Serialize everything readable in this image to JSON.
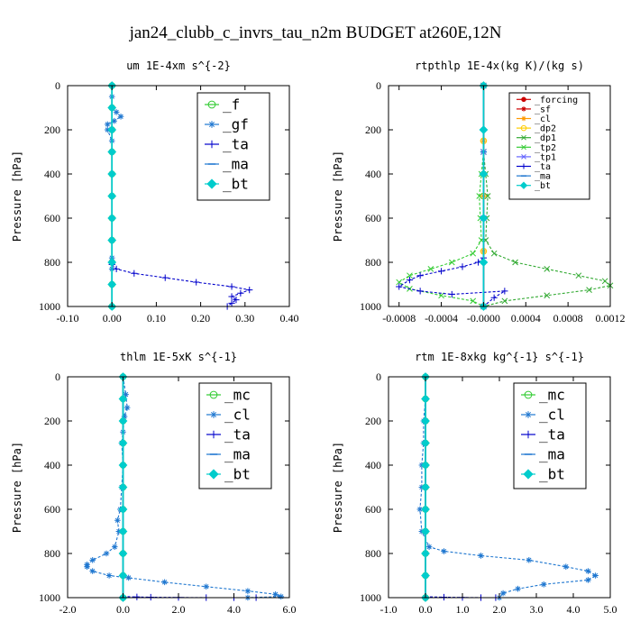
{
  "figure": {
    "title": "jan24_clubb_c_invrs_tau_n2m  BUDGET at260E,12N"
  },
  "chart_data": [
    {
      "type": "line",
      "title": "um  1E-4xm s^{-2}",
      "ylabel": "Pressure [hPa]",
      "xlim": [
        -0.1,
        0.4
      ],
      "ylim": [
        1000,
        0
      ],
      "xticks": [
        -0.1,
        0.0,
        0.1,
        0.2,
        0.3,
        0.4
      ],
      "xtick_labels": [
        "-0.10",
        "0.00",
        "0.10",
        "0.20",
        "0.30",
        "0.40"
      ],
      "yticks": [
        0,
        200,
        400,
        600,
        800,
        1000
      ],
      "ytick_labels": [
        "0",
        "200",
        "400",
        "600",
        "800",
        "1000"
      ],
      "legend_position": "top-right",
      "series": [
        {
          "name": "_f",
          "color": "#33cc33",
          "marker": "circle",
          "x": [
            0.0,
            0.0,
            0.0,
            0.0,
            0.0,
            0.0,
            0.0,
            0.0,
            0.0,
            0.0,
            0.0
          ],
          "y": [
            0,
            100,
            200,
            300,
            400,
            500,
            600,
            700,
            800,
            900,
            1000
          ]
        },
        {
          "name": "_gf",
          "color": "#1f77d0",
          "marker": "star",
          "x": [
            0.0,
            0.0,
            0.0,
            0.01,
            0.02,
            0.005,
            -0.01,
            -0.01,
            0.0,
            0.0,
            0.0,
            0.0,
            0.0,
            0.0,
            0.0,
            0.0,
            0.0
          ],
          "y": [
            0,
            50,
            100,
            120,
            140,
            160,
            175,
            200,
            250,
            300,
            400,
            500,
            600,
            700,
            780,
            800,
            830
          ]
        },
        {
          "name": "_ta",
          "color": "#0000cc",
          "marker": "plus",
          "x": [
            0.0,
            0.01,
            0.05,
            0.12,
            0.19,
            0.27,
            0.31,
            0.29,
            0.27,
            0.28,
            0.27,
            0.26
          ],
          "y": [
            810,
            830,
            850,
            870,
            890,
            910,
            925,
            940,
            955,
            970,
            985,
            1000
          ]
        },
        {
          "name": "_ma",
          "color": "#1f77d0",
          "marker": "dash",
          "x": [
            0.0,
            0.0,
            0.0,
            0.0,
            0.0,
            0.0
          ],
          "y": [
            0,
            200,
            400,
            600,
            800,
            1000
          ]
        },
        {
          "name": "_bt",
          "color": "#00cccc",
          "marker": "diamond",
          "x": [
            0.0,
            0.0,
            0.0,
            0.0,
            0.0,
            0.0,
            0.0,
            0.0,
            0.0,
            0.0,
            0.0
          ],
          "y": [
            0,
            100,
            200,
            300,
            400,
            500,
            600,
            700,
            800,
            900,
            1000
          ]
        }
      ]
    },
    {
      "type": "line",
      "title": "rtpthlp  1E-4x(kg K)/(kg s)",
      "ylabel": "Pressure [hPa]",
      "xlim": [
        -0.0009,
        0.0012
      ],
      "ylim": [
        1000,
        0
      ],
      "xticks": [
        -0.0008,
        -0.0004,
        0.0,
        0.0004,
        0.0008,
        0.0012
      ],
      "xtick_labels": [
        "-0.0008",
        "-0.0004",
        "-0.0000",
        "0.0004",
        "0.0008",
        "0.0012"
      ],
      "yticks": [
        0,
        200,
        400,
        600,
        800,
        1000
      ],
      "ytick_labels": [
        "0",
        "200",
        "400",
        "600",
        "800",
        "1000"
      ],
      "legend_position": "top-right",
      "series": [
        {
          "name": "_forcing",
          "color": "#cc0000",
          "marker": "dot",
          "x": [
            0.0,
            0.0,
            0.0,
            0.0,
            0.0,
            0.0
          ],
          "y": [
            0,
            200,
            400,
            600,
            800,
            1000
          ]
        },
        {
          "name": "_sf",
          "color": "#cc0000",
          "marker": "star",
          "x": [
            0.0,
            0.0,
            0.0,
            0.0,
            0.0,
            0.0
          ],
          "y": [
            0,
            200,
            400,
            600,
            800,
            1000
          ]
        },
        {
          "name": "_cl",
          "color": "#ff9900",
          "marker": "star",
          "x": [
            0.0,
            0.0,
            0.0,
            0.0,
            0.0
          ],
          "y": [
            0,
            250,
            500,
            750,
            1000
          ]
        },
        {
          "name": "_dp2",
          "color": "#ffcc00",
          "marker": "circle",
          "x": [
            0.0,
            0.0,
            0.0,
            0.0,
            0.0
          ],
          "y": [
            0,
            250,
            500,
            750,
            1000
          ]
        },
        {
          "name": "_dp1",
          "color": "#33aa33",
          "marker": "cross",
          "x": [
            0.0,
            0.0,
            2e-05,
            4e-05,
            3e-05,
            2e-05,
            0.0001,
            0.0003,
            0.0006,
            0.0009,
            0.00115,
            0.0012,
            0.001,
            0.0006,
            0.0002,
            0.0
          ],
          "y": [
            0,
            300,
            400,
            500,
            600,
            700,
            760,
            800,
            830,
            860,
            885,
            905,
            925,
            950,
            975,
            1000
          ]
        },
        {
          "name": "_tp2",
          "color": "#33cc33",
          "marker": "cross",
          "x": [
            0.0,
            0.0,
            -2e-05,
            -4e-05,
            -3e-05,
            -2e-05,
            -0.0001,
            -0.0003,
            -0.0005,
            -0.0007,
            -0.0008,
            -0.0007,
            -0.0004,
            -0.0001,
            0.0
          ],
          "y": [
            0,
            300,
            400,
            500,
            600,
            700,
            760,
            800,
            830,
            860,
            890,
            920,
            950,
            975,
            1000
          ]
        },
        {
          "name": "_tp1",
          "color": "#6666ff",
          "marker": "cross",
          "x": [
            0.0,
            0.0,
            0.0,
            0.0
          ],
          "y": [
            0,
            300,
            600,
            1000
          ]
        },
        {
          "name": "_ta",
          "color": "#0000cc",
          "marker": "plus",
          "x": [
            0.0,
            -5e-05,
            -0.0002,
            -0.0004,
            -0.0006,
            -0.0007,
            -0.0008,
            -0.0006,
            -0.0003,
            0.0002,
            0.0001,
            0.0
          ],
          "y": [
            780,
            800,
            820,
            840,
            860,
            880,
            910,
            930,
            945,
            930,
            960,
            1000
          ]
        },
        {
          "name": "_ma",
          "color": "#1f77d0",
          "marker": "dash",
          "x": [
            0.0,
            0.0,
            0.0,
            0.0
          ],
          "y": [
            0,
            300,
            600,
            1000
          ]
        },
        {
          "name": "_bt",
          "color": "#00cccc",
          "marker": "diamond",
          "x": [
            0.0,
            0.0,
            0.0,
            0.0,
            0.0,
            0.0
          ],
          "y": [
            0,
            200,
            400,
            600,
            800,
            1000
          ]
        }
      ]
    },
    {
      "type": "line",
      "title": "thlm  1E-5xK s^{-1}",
      "ylabel": "Pressure [hPa]",
      "xlim": [
        -2.0,
        6.0
      ],
      "ylim": [
        1000,
        0
      ],
      "xticks": [
        -2.0,
        0.0,
        2.0,
        4.0,
        6.0
      ],
      "xtick_labels": [
        "-2.0",
        "0.0",
        "2.0",
        "4.0",
        "6.0"
      ],
      "yticks": [
        0,
        200,
        400,
        600,
        800,
        1000
      ],
      "ytick_labels": [
        "0",
        "200",
        "400",
        "600",
        "800",
        "1000"
      ],
      "legend_position": "top-right",
      "series": [
        {
          "name": "_mc",
          "color": "#33cc33",
          "marker": "circle",
          "x": [
            0.0,
            0.0,
            0.0,
            0.0,
            0.0,
            0.0,
            0.0,
            0.0,
            0.0,
            0.0,
            0.0
          ],
          "y": [
            0,
            100,
            200,
            300,
            400,
            500,
            600,
            700,
            800,
            900,
            1000
          ]
        },
        {
          "name": "_cl",
          "color": "#1f77d0",
          "marker": "star",
          "x": [
            0.0,
            0.1,
            0.15,
            0.05,
            0.0,
            -0.05,
            0.0,
            -0.05,
            -0.1,
            -0.2,
            -0.15,
            -0.3,
            -0.6,
            -1.1,
            -1.3,
            -1.3,
            -1.1,
            -0.5,
            0.2,
            1.5,
            3.0,
            4.5,
            5.5,
            5.7,
            4.5
          ],
          "y": [
            0,
            80,
            140,
            180,
            250,
            300,
            400,
            500,
            600,
            650,
            700,
            770,
            800,
            830,
            850,
            860,
            880,
            900,
            910,
            930,
            950,
            970,
            985,
            995,
            1000
          ]
        },
        {
          "name": "_ta",
          "color": "#0000cc",
          "marker": "plus",
          "x": [
            0.0,
            0.5,
            1.0,
            2.0,
            3.0,
            4.0,
            4.8
          ],
          "y": [
            995,
            997,
            998,
            999,
            1000,
            1000,
            1000
          ]
        },
        {
          "name": "_ma",
          "color": "#1f77d0",
          "marker": "dash",
          "x": [
            0.0,
            0.0,
            0.0,
            0.0,
            0.0,
            0.0
          ],
          "y": [
            0,
            200,
            400,
            600,
            800,
            1000
          ]
        },
        {
          "name": "_bt",
          "color": "#00cccc",
          "marker": "diamond",
          "x": [
            0.0,
            0.0,
            0.0,
            0.0,
            0.0,
            0.0,
            0.0,
            0.0,
            0.0,
            0.0,
            0.0
          ],
          "y": [
            0,
            100,
            200,
            300,
            400,
            500,
            600,
            700,
            800,
            900,
            1000
          ]
        }
      ]
    },
    {
      "type": "line",
      "title": "rtm  1E-8xkg kg^{-1} s^{-1}",
      "ylabel": "Pressure [hPa]",
      "xlim": [
        -1.0,
        5.0
      ],
      "ylim": [
        1000,
        0
      ],
      "xticks": [
        -1.0,
        0.0,
        1.0,
        2.0,
        3.0,
        4.0,
        5.0
      ],
      "xtick_labels": [
        "-1.0",
        "0.0",
        "1.0",
        "2.0",
        "3.0",
        "4.0",
        "5.0"
      ],
      "yticks": [
        0,
        200,
        400,
        600,
        800,
        1000
      ],
      "ytick_labels": [
        "0",
        "200",
        "400",
        "600",
        "800",
        "1000"
      ],
      "legend_position": "top-right",
      "series": [
        {
          "name": "_mc",
          "color": "#33cc33",
          "marker": "circle",
          "x": [
            0.0,
            0.0,
            0.0,
            0.0,
            0.0,
            0.0,
            0.0,
            0.0,
            0.0,
            0.0,
            0.0
          ],
          "y": [
            0,
            100,
            200,
            300,
            400,
            500,
            600,
            700,
            800,
            900,
            1000
          ]
        },
        {
          "name": "_cl",
          "color": "#1f77d0",
          "marker": "star",
          "x": [
            0.0,
            0.0,
            -0.05,
            -0.05,
            -0.1,
            -0.1,
            -0.15,
            -0.1,
            0.1,
            0.5,
            1.5,
            2.8,
            3.8,
            4.4,
            4.6,
            4.4,
            3.2,
            2.5,
            2.1,
            2.0
          ],
          "y": [
            0,
            100,
            200,
            300,
            400,
            500,
            600,
            700,
            770,
            790,
            810,
            830,
            860,
            880,
            900,
            920,
            940,
            960,
            980,
            1000
          ]
        },
        {
          "name": "_ta",
          "color": "#0000cc",
          "marker": "plus",
          "x": [
            0.0,
            0.5,
            1.0,
            1.5,
            1.9
          ],
          "y": [
            996,
            998,
            999,
            1000,
            1000
          ]
        },
        {
          "name": "_ma",
          "color": "#1f77d0",
          "marker": "dash",
          "x": [
            0.0,
            0.0,
            0.0,
            0.0,
            0.0,
            0.0
          ],
          "y": [
            0,
            200,
            400,
            600,
            800,
            1000
          ]
        },
        {
          "name": "_bt",
          "color": "#00cccc",
          "marker": "diamond",
          "x": [
            0.0,
            0.0,
            0.0,
            0.0,
            0.0,
            0.0,
            0.0,
            0.0,
            0.0,
            0.0,
            0.0
          ],
          "y": [
            0,
            100,
            200,
            300,
            400,
            500,
            600,
            700,
            800,
            900,
            1000
          ]
        }
      ]
    }
  ]
}
